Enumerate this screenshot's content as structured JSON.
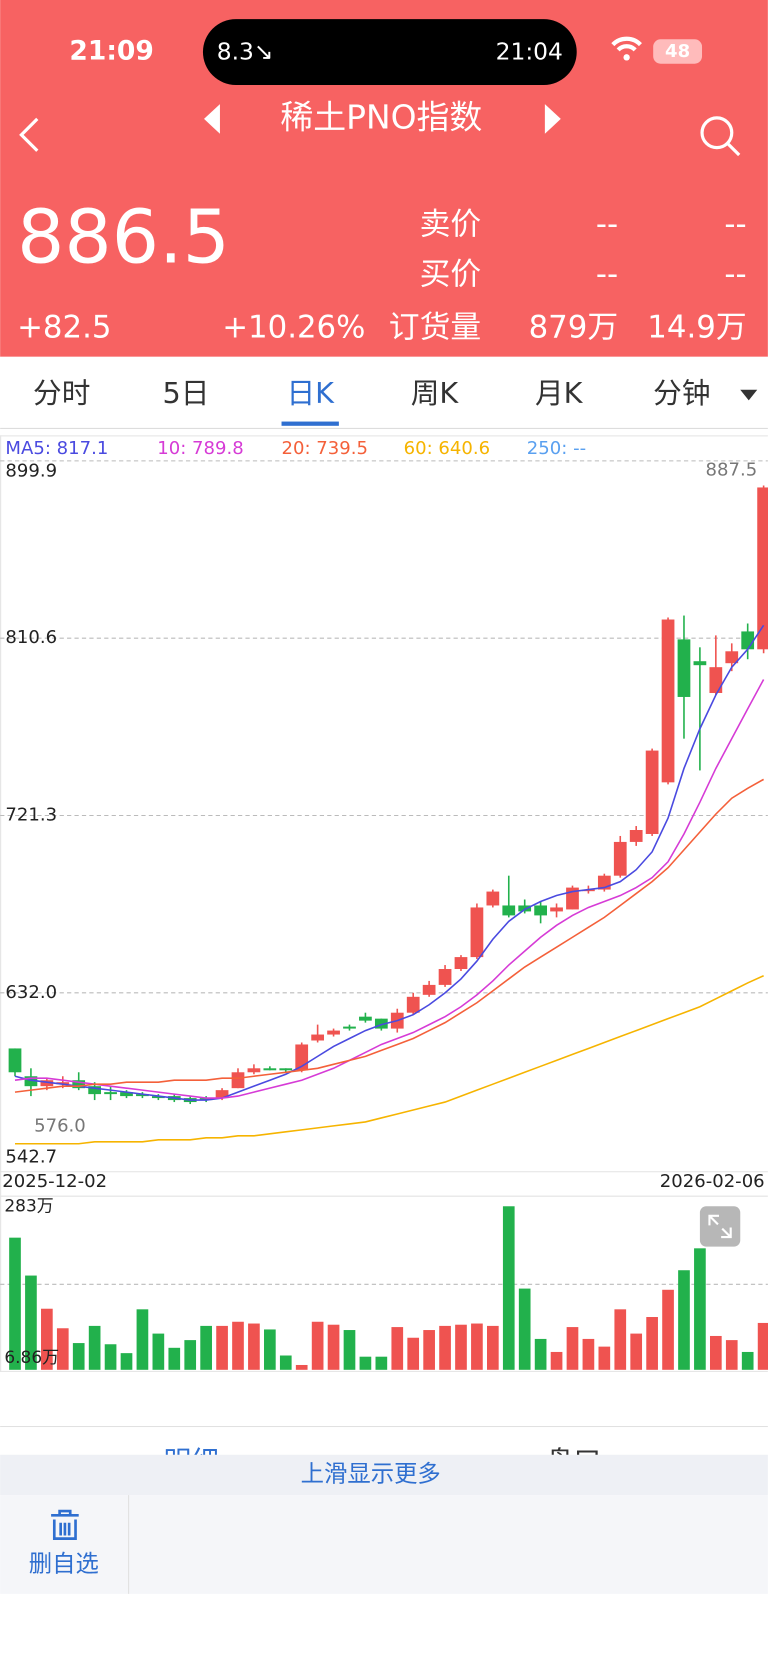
{
  "status_bar": {
    "time": "21:09",
    "island_left": "8.3↘",
    "island_right": "21:04",
    "battery": "48"
  },
  "header": {
    "title": "稀土PNO指数"
  },
  "quote": {
    "price": "886.5",
    "change": "+82.5",
    "change_pct": "+10.26%",
    "ask_label": "卖价",
    "ask": [
      "--",
      "--"
    ],
    "bid_label": "买价",
    "bid": [
      "--",
      "--"
    ],
    "volume_label": "订货量",
    "volume": [
      "879万",
      "14.9万"
    ]
  },
  "tabs": [
    "分时",
    "5日",
    "日K",
    "周K",
    "月K",
    "分钟"
  ],
  "chart": {
    "type": "candlestick",
    "ylim": [
      542.7,
      899.9
    ],
    "yticks": [
      {
        "value": 899.9,
        "label": "899.9"
      },
      {
        "value": 810.6,
        "label": "810.6"
      },
      {
        "value": 721.3,
        "label": "721.3"
      },
      {
        "value": 632.0,
        "label": "632.0"
      },
      {
        "value": 542.7,
        "label": "542.7"
      }
    ],
    "high_label": {
      "value": 887.5,
      "label": "887.5"
    },
    "low_label": {
      "value": 576.0,
      "label": "576.0"
    },
    "x_labels": [
      "2025-12-02",
      "2026-02-06"
    ],
    "up_color": "#ef5350",
    "down_color": "#22b14c",
    "ohlc": [
      [
        604,
        604,
        590,
        592
      ],
      [
        590,
        594,
        580,
        585
      ],
      [
        585,
        589,
        583,
        588
      ],
      [
        586,
        590,
        584,
        587
      ],
      [
        588,
        592,
        583,
        584
      ],
      [
        585,
        587,
        578,
        581
      ],
      [
        582,
        585,
        578,
        581
      ],
      [
        582,
        583,
        579,
        580
      ],
      [
        581,
        582,
        579,
        580
      ],
      [
        580,
        581,
        578,
        579
      ],
      [
        580,
        581,
        577,
        578
      ],
      [
        579,
        580,
        576,
        577
      ],
      [
        579,
        580,
        577,
        578
      ],
      [
        579,
        584,
        578,
        583
      ],
      [
        584,
        594,
        584,
        592
      ],
      [
        592,
        596,
        591,
        594
      ],
      [
        594,
        595,
        593,
        593
      ],
      [
        594,
        594,
        592,
        593
      ],
      [
        593,
        607,
        592,
        606
      ],
      [
        608,
        616,
        607,
        611
      ],
      [
        611,
        614,
        610,
        613
      ],
      [
        615,
        616,
        613,
        614
      ],
      [
        620,
        622,
        617,
        618
      ],
      [
        619,
        619,
        613,
        614
      ],
      [
        614,
        624,
        612,
        622
      ],
      [
        622,
        632,
        621,
        630
      ],
      [
        631,
        638,
        630,
        636
      ],
      [
        636,
        646,
        635,
        644
      ],
      [
        644,
        651,
        643,
        650
      ],
      [
        650,
        677,
        649,
        675
      ],
      [
        676,
        684,
        675,
        683
      ],
      [
        676,
        691,
        670,
        671
      ],
      [
        676,
        679,
        672,
        673
      ],
      [
        676,
        678,
        667,
        671
      ],
      [
        673,
        677,
        670,
        675
      ],
      [
        674,
        686,
        674,
        685
      ],
      [
        684,
        686,
        682,
        684
      ],
      [
        684,
        692,
        683,
        691
      ],
      [
        691,
        711,
        690,
        708
      ],
      [
        708,
        716,
        706,
        714
      ],
      [
        712,
        755,
        711,
        754
      ],
      [
        738,
        821,
        737,
        820
      ],
      [
        810,
        822,
        760,
        781
      ],
      [
        799,
        806,
        744,
        797
      ],
      [
        783,
        812,
        782,
        796
      ],
      [
        798,
        808,
        794,
        804
      ],
      [
        814,
        818,
        800,
        805
      ],
      [
        805,
        887.5,
        803,
        886.5
      ]
    ],
    "ma": [
      {
        "label": "MA5: 817.1",
        "color": "#4a4ae0",
        "values": [
          590,
          588,
          587,
          586,
          585,
          584,
          583,
          582,
          581,
          580,
          579,
          578,
          578,
          579,
          582,
          585,
          588,
          591,
          595,
          600,
          605,
          609,
          613,
          616,
          618,
          621,
          626,
          632,
          639,
          648,
          659,
          668,
          674,
          678,
          681,
          683,
          684,
          685,
          688,
          694,
          703,
          720,
          745,
          765,
          782,
          796,
          805,
          817.1
        ]
      },
      {
        "label": "10: 789.8",
        "color": "#d63bd6",
        "values": [
          588,
          589,
          589,
          588,
          587,
          586,
          585,
          584,
          583,
          582,
          581,
          580,
          579,
          579,
          580,
          582,
          584,
          586,
          588,
          591,
          594,
          598,
          602,
          606,
          609,
          612,
          616,
          620,
          625,
          631,
          638,
          646,
          653,
          660,
          666,
          671,
          675,
          678,
          681,
          685,
          690,
          698,
          712,
          728,
          745,
          760,
          775,
          789.8
        ]
      },
      {
        "label": "20: 739.5",
        "color": "#f4603a",
        "values": [
          582,
          583,
          584,
          585,
          585,
          586,
          586,
          587,
          587,
          587,
          588,
          588,
          588,
          589,
          589,
          590,
          591,
          592,
          593,
          594,
          596,
          598,
          600,
          603,
          606,
          609,
          613,
          617,
          622,
          627,
          633,
          639,
          645,
          650,
          655,
          660,
          665,
          670,
          676,
          682,
          688,
          695,
          704,
          713,
          722,
          730,
          735,
          739.5
        ]
      },
      {
        "label": "60: 640.6",
        "color": "#f6b400",
        "values": [
          556,
          556,
          556,
          556,
          556,
          557,
          557,
          557,
          557,
          558,
          558,
          558,
          559,
          559,
          560,
          560,
          561,
          562,
          563,
          564,
          565,
          566,
          567,
          569,
          571,
          573,
          575,
          577,
          580,
          583,
          586,
          589,
          592,
          595,
          598,
          601,
          604,
          607,
          610,
          613,
          616,
          619,
          622,
          625,
          629,
          633,
          637,
          640.6
        ]
      },
      {
        "label": "250: --",
        "color": "#5aa0f0",
        "values": []
      }
    ],
    "volume": {
      "ylim": [
        6.86,
        283
      ],
      "yticks": [
        {
          "value": 283,
          "label": "283万"
        },
        {
          "value": 6.86,
          "label": "6.86万"
        }
      ],
      "values": [
        230,
        166,
        110,
        77,
        52,
        81,
        50,
        35,
        109,
        68,
        44,
        57,
        81,
        81,
        88,
        85,
        75,
        31,
        15,
        88,
        83,
        74,
        29,
        29,
        79,
        61,
        74,
        81,
        83,
        85,
        81,
        283,
        144,
        59,
        37,
        79,
        59,
        46,
        109,
        68,
        96,
        142,
        175,
        212,
        64,
        57,
        37,
        86
      ]
    }
  },
  "bottom_tabs": [
    "明细",
    "盘口"
  ],
  "swipe_hint": "上滑显示更多",
  "actions": [
    "删自选"
  ]
}
